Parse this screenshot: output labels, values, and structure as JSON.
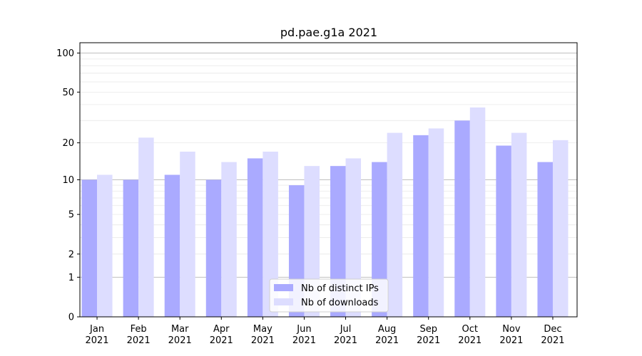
{
  "chart_data": {
    "type": "bar",
    "title": "pd.pae.g1a 2021",
    "xlabel": "",
    "ylabel": "",
    "scale": "log(1+y)",
    "ylim": [
      0,
      120
    ],
    "yticks": [
      0,
      1,
      2,
      5,
      10,
      20,
      50,
      100
    ],
    "grid": "horizontal",
    "legend_position": "bottom-center",
    "categories": [
      [
        "Jan",
        "2021"
      ],
      [
        "Feb",
        "2021"
      ],
      [
        "Mar",
        "2021"
      ],
      [
        "Apr",
        "2021"
      ],
      [
        "May",
        "2021"
      ],
      [
        "Jun",
        "2021"
      ],
      [
        "Jul",
        "2021"
      ],
      [
        "Aug",
        "2021"
      ],
      [
        "Sep",
        "2021"
      ],
      [
        "Oct",
        "2021"
      ],
      [
        "Nov",
        "2021"
      ],
      [
        "Dec",
        "2021"
      ]
    ],
    "series": [
      {
        "name": "Nb of distinct IPs",
        "color": "#aaaaff",
        "values": [
          10,
          10,
          11,
          10,
          15,
          9,
          13,
          14,
          23,
          30,
          19,
          14
        ]
      },
      {
        "name": "Nb of downloads",
        "color": "#ddddff",
        "values": [
          11,
          22,
          17,
          14,
          17,
          13,
          15,
          24,
          26,
          38,
          24,
          21
        ]
      }
    ]
  }
}
